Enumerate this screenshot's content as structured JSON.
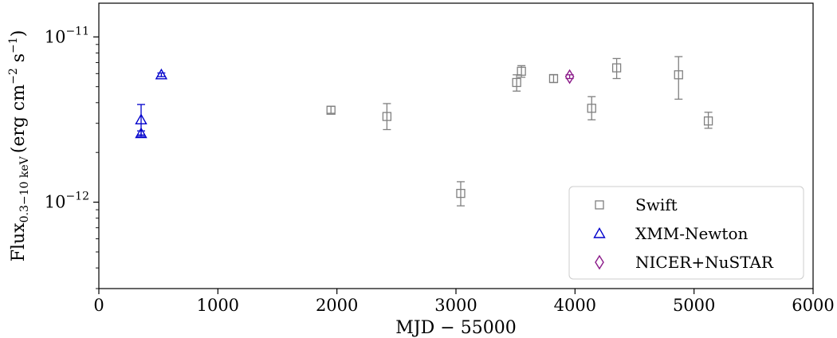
{
  "chart_data": {
    "type": "scatter",
    "xlabel": "MJD − 55000",
    "ylabel": "Flux",
    "ylabel_sub": "0.3−10 keV",
    "ylabel_units": "(erg cm",
    "ylabel_exp1": "−2",
    "ylabel_mid": " s",
    "ylabel_exp2": "−1",
    "ylabel_close": ")",
    "xlim": [
      0,
      6000
    ],
    "ylim": [
      3e-13,
      1.6e-11
    ],
    "yscale": "log",
    "xticks": [
      0,
      1000,
      2000,
      3000,
      4000,
      5000,
      6000
    ],
    "yticks": [
      {
        "value": 1e-12,
        "base": "10",
        "exp": "−12"
      },
      {
        "value": 1e-11,
        "base": "10",
        "exp": "−11"
      }
    ],
    "grid": false,
    "legend_position": "lower-right",
    "series": [
      {
        "name": "Swift",
        "marker": "square",
        "color": "#808080",
        "points": [
          {
            "x": 1950,
            "y": 3.6e-12,
            "lo": 3.45e-12,
            "hi": 3.8e-12
          },
          {
            "x": 2420,
            "y": 3.3e-12,
            "lo": 2.75e-12,
            "hi": 3.95e-12
          },
          {
            "x": 3040,
            "y": 1.13e-12,
            "lo": 9.5e-13,
            "hi": 1.33e-12
          },
          {
            "x": 3510,
            "y": 5.3e-12,
            "lo": 4.7e-12,
            "hi": 5.9e-12
          },
          {
            "x": 3550,
            "y": 6.2e-12,
            "lo": 5.7e-12,
            "hi": 6.7e-12
          },
          {
            "x": 3820,
            "y": 5.6e-12,
            "lo": 5.3e-12,
            "hi": 5.9e-12
          },
          {
            "x": 4140,
            "y": 3.7e-12,
            "lo": 3.15e-12,
            "hi": 4.35e-12
          },
          {
            "x": 4350,
            "y": 6.5e-12,
            "lo": 5.6e-12,
            "hi": 7.4e-12
          },
          {
            "x": 4870,
            "y": 5.9e-12,
            "lo": 4.2e-12,
            "hi": 7.6e-12
          },
          {
            "x": 5120,
            "y": 3.1e-12,
            "lo": 2.8e-12,
            "hi": 3.5e-12
          }
        ]
      },
      {
        "name": "XMM-Newton",
        "marker": "triangle",
        "color": "#0000cc",
        "points": [
          {
            "x": 355,
            "y": 3.15e-12,
            "lo": 2.55e-12,
            "hi": 3.9e-12
          },
          {
            "x": 355,
            "y": 2.6e-12,
            "lo": 2.5e-12,
            "hi": 2.7e-12
          },
          {
            "x": 525,
            "y": 5.9e-12,
            "lo": 5.75e-12,
            "hi": 6.05e-12
          }
        ]
      },
      {
        "name": "NICER+NuSTAR",
        "marker": "diamond",
        "color": "#8b1a89",
        "points": [
          {
            "x": 3955,
            "y": 5.75e-12,
            "lo": 5.6e-12,
            "hi": 5.9e-12
          }
        ]
      }
    ]
  }
}
